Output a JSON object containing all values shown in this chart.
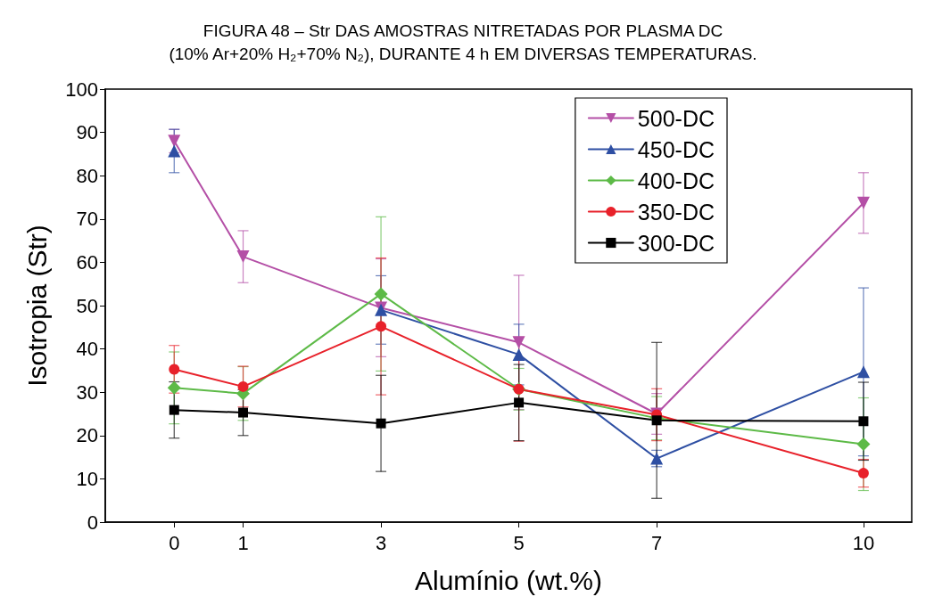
{
  "chart_data": {
    "type": "line",
    "title": "FIGURA 48 – Str DAS AMOSTRAS NITRETADAS POR PLASMA DC\n(10% Ar+20% H₂+70% N₂), DURANTE 4 h EM DIVERSAS TEMPERATURAS.",
    "xlabel": "Alumínio (wt.%)",
    "ylabel": "Isotropia (Str)",
    "x": [
      0,
      1,
      3,
      5,
      7,
      10
    ],
    "xlim": [
      -1,
      10.7
    ],
    "xticks": [
      0,
      1,
      3,
      5,
      7,
      10
    ],
    "ylim": [
      0,
      100
    ],
    "yticks": [
      0,
      10,
      20,
      30,
      40,
      50,
      60,
      70,
      80,
      90,
      100
    ],
    "grid": false,
    "legend": "top right",
    "line_style": "solid",
    "series": [
      {
        "name": "500-DC",
        "color": "#b44fa6",
        "marker": "triangle-down",
        "values": [
          88,
          61.3,
          49.5,
          41.5,
          25,
          73.7
        ],
        "errors": [
          2.7,
          6,
          11.3,
          15.5,
          4.7,
          7
        ]
      },
      {
        "name": "450-DC",
        "color": "#2e4fa3",
        "marker": "triangle",
        "values": [
          85.7,
          null,
          49,
          38.7,
          14.7,
          34.7
        ],
        "errors": [
          5,
          null,
          7.9,
          7,
          1.9,
          19.4
        ]
      },
      {
        "name": "400-DC",
        "color": "#5dba47",
        "marker": "diamond",
        "values": [
          31,
          29.7,
          52.7,
          30.7,
          24,
          18
        ],
        "errors": [
          8.3,
          6.2,
          17.8,
          4.8,
          5,
          10.7
        ]
      },
      {
        "name": "350-DC",
        "color": "#e8212a",
        "marker": "circle",
        "values": [
          35.3,
          31.3,
          45.2,
          30.7,
          24.8,
          11.3
        ],
        "errors": [
          5.5,
          4.7,
          15.8,
          12,
          6,
          3.2
        ]
      },
      {
        "name": "300-DC",
        "color": "#000000",
        "marker": "square",
        "values": [
          25.9,
          25.3,
          22.8,
          27.6,
          23.5,
          23.3
        ],
        "errors": [
          6.5,
          5.3,
          11.1,
          8.8,
          18,
          9
        ]
      }
    ]
  }
}
